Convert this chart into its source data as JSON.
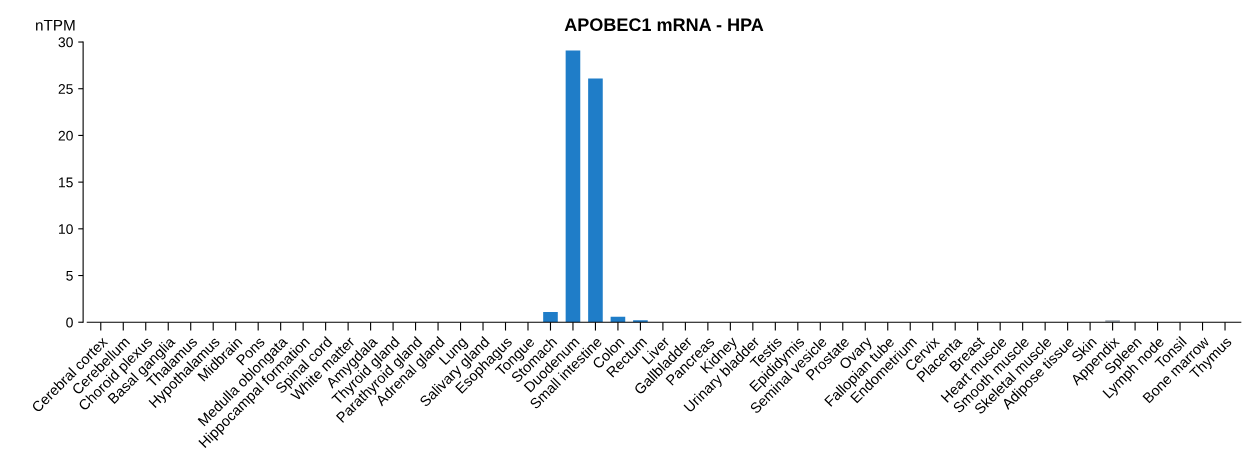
{
  "chart_data": {
    "type": "bar",
    "title": "APOBEC1 mRNA - HPA",
    "ylabel": "nTPM",
    "categories": [
      "Cerebral cortex",
      "Cerebellum",
      "Choroid plexus",
      "Basal ganglia",
      "Thalamus",
      "Hypothalamus",
      "Midbrain",
      "Pons",
      "Medulla oblongata",
      "Hippocampal formation",
      "Spinal cord",
      "White matter",
      "Amygdala",
      "Thyroid gland",
      "Parathyroid gland",
      "Adrenal gland",
      "Lung",
      "Salivary gland",
      "Esophagus",
      "Tongue",
      "Stomach",
      "Duodenum",
      "Small intestine",
      "Colon",
      "Rectum",
      "Liver",
      "Gallbladder",
      "Pancreas",
      "Kidney",
      "Urinary bladder",
      "Testis",
      "Epididymis",
      "Seminal vesicle",
      "Prostate",
      "Ovary",
      "Fallopian tube",
      "Endometrium",
      "Cervix",
      "Placenta",
      "Breast",
      "Heart muscle",
      "Smooth muscle",
      "Skeletal muscle",
      "Adipose tissue",
      "Skin",
      "Appendix",
      "Spleen",
      "Lymph node",
      "Tonsil",
      "Bone marrow",
      "Thymus"
    ],
    "values": [
      0,
      0,
      0,
      0,
      0,
      0,
      0,
      0,
      0,
      0,
      0,
      0,
      0,
      0,
      0,
      0,
      0,
      0,
      0,
      0,
      1.1,
      29.1,
      26.1,
      0.6,
      0.2,
      0,
      0,
      0,
      0,
      0,
      0,
      0,
      0,
      0,
      0,
      0,
      0,
      0,
      0,
      0,
      0,
      0,
      0,
      0,
      0,
      0.2,
      0,
      0,
      0,
      0,
      0
    ],
    "colors": [
      "#1f7dc8",
      "#1f7dc8",
      "#1f7dc8",
      "#1f7dc8",
      "#1f7dc8",
      "#1f7dc8",
      "#1f7dc8",
      "#1f7dc8",
      "#1f7dc8",
      "#1f7dc8",
      "#1f7dc8",
      "#1f7dc8",
      "#1f7dc8",
      "#1f7dc8",
      "#1f7dc8",
      "#1f7dc8",
      "#1f7dc8",
      "#1f7dc8",
      "#1f7dc8",
      "#1f7dc8",
      "#1f7dc8",
      "#1f7dc8",
      "#1f7dc8",
      "#1f7dc8",
      "#1f7dc8",
      "#1f7dc8",
      "#1f7dc8",
      "#1f7dc8",
      "#1f7dc8",
      "#1f7dc8",
      "#1f7dc8",
      "#1f7dc8",
      "#1f7dc8",
      "#1f7dc8",
      "#1f7dc8",
      "#1f7dc8",
      "#1f7dc8",
      "#1f7dc8",
      "#1f7dc8",
      "#1f7dc8",
      "#1f7dc8",
      "#1f7dc8",
      "#1f7dc8",
      "#1f7dc8",
      "#1f7dc8",
      "#a0a8b0",
      "#1f7dc8",
      "#1f7dc8",
      "#1f7dc8",
      "#1f7dc8",
      "#1f7dc8"
    ],
    "ylim": [
      0,
      30
    ],
    "yticks": [
      0,
      5,
      10,
      15,
      20,
      25,
      30
    ],
    "grid": false,
    "legend": false
  }
}
